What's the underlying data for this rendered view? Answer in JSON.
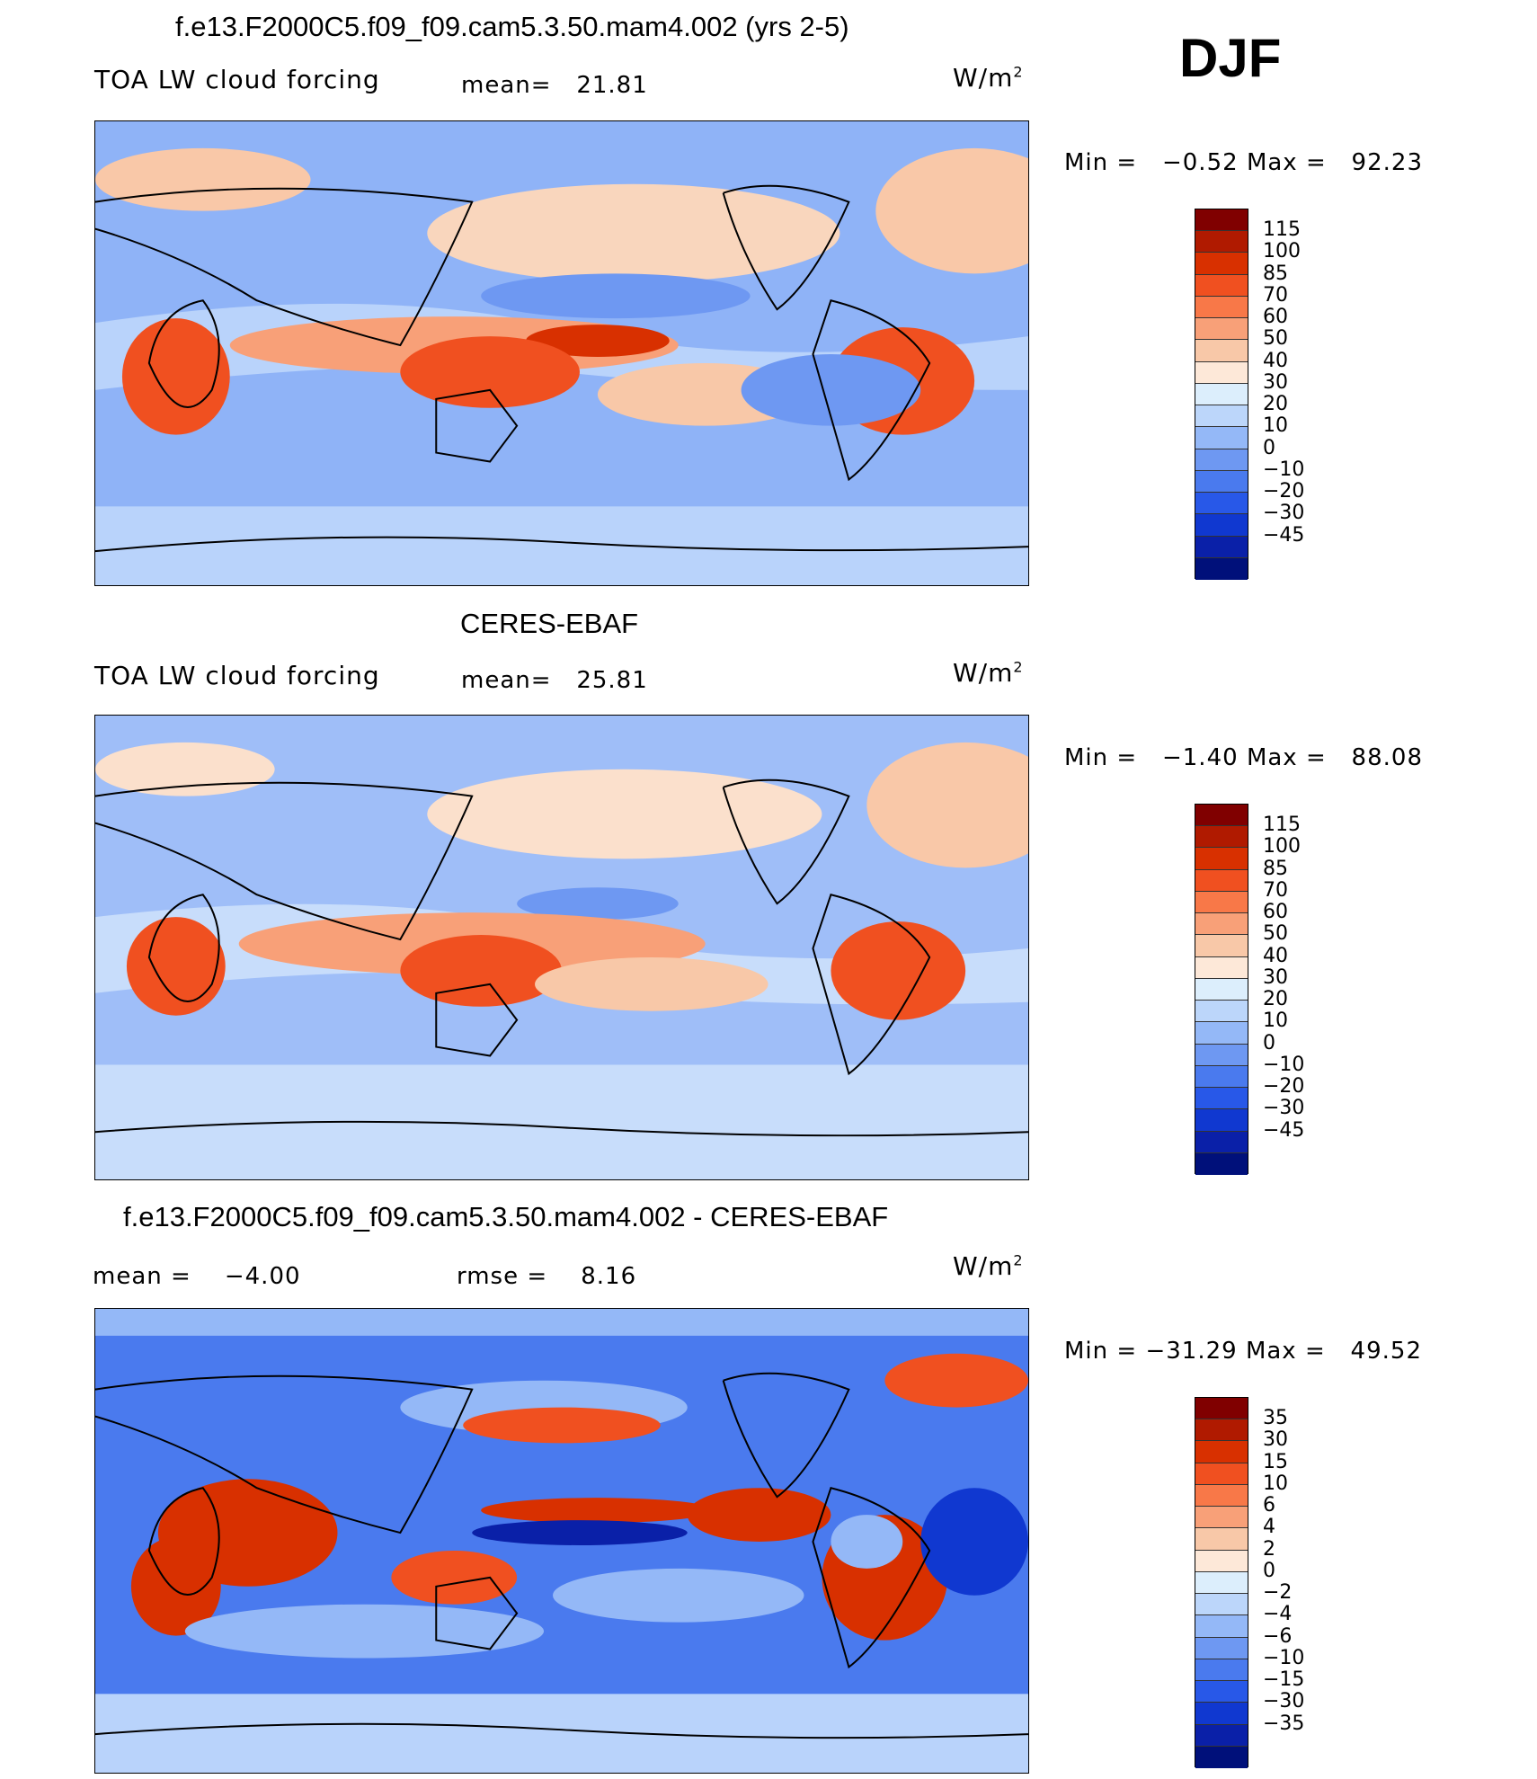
{
  "season": "DJF",
  "panels": [
    {
      "title": "f.e13.F2000C5.f09_f09.cam5.3.50.mam4.002 (yrs 2-5)",
      "variable": "TOA LW cloud forcing",
      "stat1_label": "mean=",
      "stat1_value": "21.81",
      "stat2_label": "",
      "stat2_value": "",
      "units": "W/m",
      "units_exp": "2",
      "min_label": "Min =",
      "min_value": "−0.52",
      "max_label": "Max =",
      "max_value": "92.23",
      "colorbar_labels": [
        "115",
        "100",
        "85",
        "70",
        "60",
        "50",
        "40",
        "30",
        "20",
        "10",
        "0",
        "−10",
        "−20",
        "−30",
        "−45"
      ]
    },
    {
      "title": "CERES-EBAF",
      "variable": "TOA LW cloud forcing",
      "stat1_label": "mean=",
      "stat1_value": "25.81",
      "stat2_label": "",
      "stat2_value": "",
      "units": "W/m",
      "units_exp": "2",
      "min_label": "Min =",
      "min_value": "−1.40",
      "max_label": "Max =",
      "max_value": "88.08",
      "colorbar_labels": [
        "115",
        "100",
        "85",
        "70",
        "60",
        "50",
        "40",
        "30",
        "20",
        "10",
        "0",
        "−10",
        "−20",
        "−30",
        "−45"
      ]
    },
    {
      "title": "f.e13.F2000C5.f09_f09.cam5.3.50.mam4.002 - CERES-EBAF",
      "variable": "",
      "stat1_label": "mean =",
      "stat1_value": "−4.00",
      "stat2_label": "rmse =",
      "stat2_value": "8.16",
      "units": "W/m",
      "units_exp": "2",
      "min_label": "Min =",
      "min_value": "−31.29",
      "max_label": "Max =",
      "max_value": "49.52",
      "colorbar_labels": [
        "35",
        "30",
        "15",
        "10",
        "6",
        "4",
        "2",
        "0",
        "−2",
        "−4",
        "−6",
        "−10",
        "−15",
        "−30",
        "−35"
      ]
    }
  ],
  "colors": {
    "scale": [
      "#800000",
      "#b01a00",
      "#d83000",
      "#f05020",
      "#f87848",
      "#f8a078",
      "#f8c8a8",
      "#fde8d8",
      "#dceefc",
      "#bcd6fa",
      "#94b8f7",
      "#6e98f2",
      "#4a7aee",
      "#2858e8",
      "#1038d0",
      "#0a20a8",
      "#00107a"
    ]
  }
}
